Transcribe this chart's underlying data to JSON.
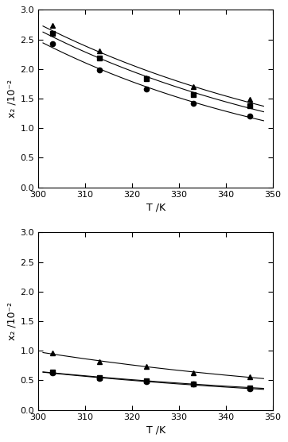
{
  "upper": {
    "T": [
      303,
      313,
      323,
      333,
      345
    ],
    "triangle": [
      2.73,
      2.3,
      1.85,
      1.7,
      1.48
    ],
    "square": [
      2.6,
      2.18,
      1.83,
      1.56,
      1.38
    ],
    "circle": [
      2.42,
      1.98,
      1.66,
      1.42,
      1.21
    ]
  },
  "lower": {
    "T": [
      303,
      313,
      323,
      333,
      345
    ],
    "triangle": [
      0.96,
      0.82,
      0.73,
      0.63,
      0.56
    ],
    "square": [
      0.635,
      0.545,
      0.49,
      0.445,
      0.375
    ],
    "circle": [
      0.625,
      0.535,
      0.48,
      0.435,
      0.355
    ]
  },
  "ylim": [
    0.0,
    3.0
  ],
  "xlim": [
    300,
    350
  ],
  "ylabel": "x₂ /10⁻²",
  "xlabel": "T /K",
  "yticks": [
    0.0,
    0.5,
    1.0,
    1.5,
    2.0,
    2.5,
    3.0
  ],
  "xticks": [
    300,
    310,
    320,
    330,
    340,
    350
  ],
  "marker_color": "black",
  "line_color": "black",
  "line_width": 0.8,
  "marker_size": 4.5
}
